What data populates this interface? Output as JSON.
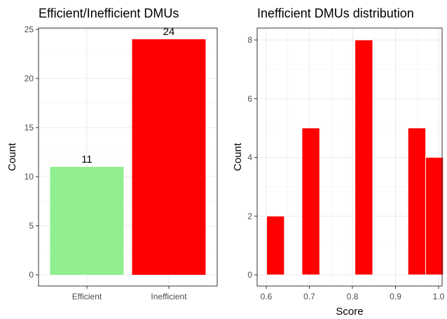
{
  "chart_data": [
    {
      "type": "bar",
      "title": "Efficient/Inefficient DMUs",
      "xlabel": "",
      "ylabel": "Count",
      "ylim": [
        0,
        25
      ],
      "yticks": [
        0,
        5,
        10,
        15,
        20,
        25
      ],
      "categories": [
        "Efficient",
        "Inefficient"
      ],
      "values": [
        11,
        24
      ],
      "colors": [
        "#90ee90",
        "#ff0000"
      ],
      "data_labels": [
        "11",
        "24"
      ],
      "grid": true
    },
    {
      "type": "histogram",
      "title": "Inefficient DMUs distribution",
      "xlabel": "Score",
      "ylabel": "Count",
      "xlim": [
        0.59,
        1.0
      ],
      "ylim": [
        0,
        8
      ],
      "xticks": [
        0.6,
        0.7,
        0.8,
        0.9,
        1.0
      ],
      "xtick_labels": [
        "0.6",
        "0.7",
        "0.8",
        "0.9",
        "1.0"
      ],
      "yticks": [
        0,
        2,
        4,
        6,
        8
      ],
      "bins": [
        {
          "x0": 0.601,
          "x1": 0.642,
          "count": 2
        },
        {
          "x0": 0.642,
          "x1": 0.683,
          "count": 0
        },
        {
          "x0": 0.683,
          "x1": 0.724,
          "count": 5
        },
        {
          "x0": 0.724,
          "x1": 0.765,
          "count": 0
        },
        {
          "x0": 0.765,
          "x1": 0.806,
          "count": 0
        },
        {
          "x0": 0.806,
          "x1": 0.847,
          "count": 8
        },
        {
          "x0": 0.847,
          "x1": 0.888,
          "count": 0
        },
        {
          "x0": 0.888,
          "x1": 0.929,
          "count": 0
        },
        {
          "x0": 0.929,
          "x1": 0.97,
          "count": 5
        },
        {
          "x0": 0.97,
          "x1": 1.011,
          "count": 4
        }
      ],
      "color": "#ff0000",
      "grid": true
    }
  ]
}
